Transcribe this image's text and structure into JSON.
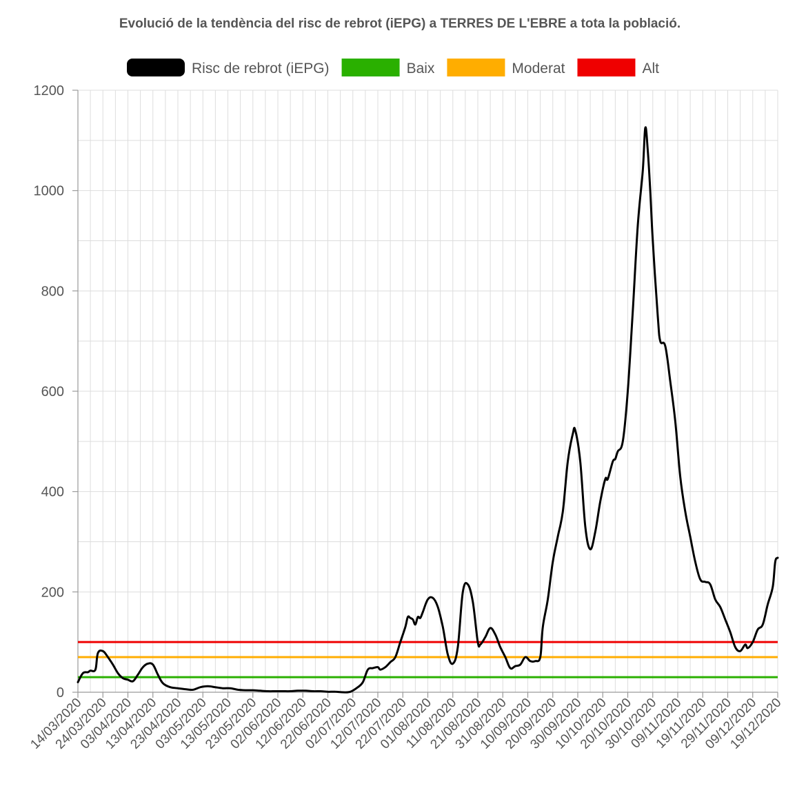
{
  "chart_data": {
    "type": "line",
    "title": "Evolució de la tendència del risc de rebrot (iEPG) a TERRES DE L'EBRE a tota la població.",
    "xlabel": "",
    "ylabel": "",
    "ylim": [
      0,
      1200
    ],
    "yticks": [
      0,
      200,
      400,
      600,
      800,
      1000,
      1200
    ],
    "grid": true,
    "legend_position": "top",
    "x_tick_labels": [
      "14/03/2020",
      "24/03/2020",
      "03/04/2020",
      "13/04/2020",
      "23/04/2020",
      "03/05/2020",
      "13/05/2020",
      "23/05/2020",
      "02/06/2020",
      "12/06/2020",
      "22/06/2020",
      "02/07/2020",
      "12/07/2020",
      "22/07/2020",
      "01/08/2020",
      "11/08/2020",
      "21/08/2020",
      "31/08/2020",
      "10/09/2020",
      "20/09/2020",
      "30/09/2020",
      "10/10/2020",
      "20/10/2020",
      "30/10/2020",
      "09/11/2020",
      "19/11/2020",
      "29/11/2020",
      "09/12/2020",
      "19/12/2020"
    ],
    "series": [
      {
        "name": "Risc de rebrot (iEPG)",
        "color": "#000000",
        "points": [
          [
            "14/03/2020",
            20
          ],
          [
            "16/03/2020",
            38
          ],
          [
            "18/03/2020",
            40
          ],
          [
            "19/03/2020",
            43
          ],
          [
            "21/03/2020",
            45
          ],
          [
            "22/03/2020",
            78
          ],
          [
            "24/03/2020",
            82
          ],
          [
            "26/03/2020",
            70
          ],
          [
            "28/03/2020",
            55
          ],
          [
            "30/03/2020",
            38
          ],
          [
            "01/04/2020",
            28
          ],
          [
            "03/04/2020",
            25
          ],
          [
            "05/04/2020",
            22
          ],
          [
            "07/04/2020",
            35
          ],
          [
            "09/04/2020",
            50
          ],
          [
            "11/04/2020",
            57
          ],
          [
            "13/04/2020",
            55
          ],
          [
            "15/04/2020",
            35
          ],
          [
            "17/04/2020",
            18
          ],
          [
            "20/04/2020",
            10
          ],
          [
            "23/04/2020",
            8
          ],
          [
            "26/04/2020",
            6
          ],
          [
            "29/04/2020",
            5
          ],
          [
            "02/05/2020",
            10
          ],
          [
            "05/05/2020",
            12
          ],
          [
            "08/05/2020",
            10
          ],
          [
            "11/05/2020",
            8
          ],
          [
            "14/05/2020",
            8
          ],
          [
            "17/05/2020",
            5
          ],
          [
            "20/05/2020",
            4
          ],
          [
            "23/05/2020",
            4
          ],
          [
            "26/05/2020",
            3
          ],
          [
            "29/05/2020",
            2
          ],
          [
            "01/06/2020",
            2
          ],
          [
            "04/06/2020",
            2
          ],
          [
            "07/06/2020",
            2
          ],
          [
            "10/06/2020",
            3
          ],
          [
            "13/06/2020",
            3
          ],
          [
            "16/06/2020",
            2
          ],
          [
            "19/06/2020",
            2
          ],
          [
            "22/06/2020",
            1
          ],
          [
            "25/06/2020",
            1
          ],
          [
            "28/06/2020",
            0
          ],
          [
            "01/07/2020",
            1
          ],
          [
            "04/07/2020",
            10
          ],
          [
            "06/07/2020",
            20
          ],
          [
            "08/07/2020",
            45
          ],
          [
            "10/07/2020",
            48
          ],
          [
            "12/07/2020",
            50
          ],
          [
            "13/07/2020",
            45
          ],
          [
            "15/07/2020",
            50
          ],
          [
            "17/07/2020",
            60
          ],
          [
            "19/07/2020",
            70
          ],
          [
            "21/07/2020",
            100
          ],
          [
            "23/07/2020",
            130
          ],
          [
            "24/07/2020",
            150
          ],
          [
            "25/07/2020",
            148
          ],
          [
            "26/07/2020",
            145
          ],
          [
            "27/07/2020",
            135
          ],
          [
            "28/07/2020",
            150
          ],
          [
            "29/07/2020",
            148
          ],
          [
            "30/07/2020",
            160
          ],
          [
            "01/08/2020",
            185
          ],
          [
            "03/08/2020",
            188
          ],
          [
            "05/08/2020",
            170
          ],
          [
            "07/08/2020",
            130
          ],
          [
            "09/08/2020",
            75
          ],
          [
            "11/08/2020",
            57
          ],
          [
            "13/08/2020",
            90
          ],
          [
            "15/08/2020",
            200
          ],
          [
            "17/08/2020",
            215
          ],
          [
            "19/08/2020",
            180
          ],
          [
            "21/08/2020",
            100
          ],
          [
            "22/08/2020",
            95
          ],
          [
            "24/08/2020",
            110
          ],
          [
            "26/08/2020",
            128
          ],
          [
            "28/08/2020",
            115
          ],
          [
            "30/08/2020",
            90
          ],
          [
            "01/09/2020",
            70
          ],
          [
            "03/09/2020",
            48
          ],
          [
            "05/09/2020",
            52
          ],
          [
            "07/09/2020",
            55
          ],
          [
            "09/09/2020",
            70
          ],
          [
            "11/09/2020",
            62
          ],
          [
            "13/09/2020",
            62
          ],
          [
            "15/09/2020",
            70
          ],
          [
            "16/09/2020",
            130
          ],
          [
            "18/09/2020",
            185
          ],
          [
            "20/09/2020",
            260
          ],
          [
            "22/09/2020",
            310
          ],
          [
            "24/09/2020",
            360
          ],
          [
            "26/09/2020",
            460
          ],
          [
            "28/09/2020",
            515
          ],
          [
            "29/09/2020",
            522
          ],
          [
            "01/10/2020",
            460
          ],
          [
            "03/10/2020",
            330
          ],
          [
            "05/10/2020",
            285
          ],
          [
            "07/10/2020",
            320
          ],
          [
            "09/10/2020",
            380
          ],
          [
            "11/10/2020",
            425
          ],
          [
            "12/10/2020",
            425
          ],
          [
            "14/10/2020",
            460
          ],
          [
            "15/10/2020",
            465
          ],
          [
            "16/10/2020",
            480
          ],
          [
            "18/10/2020",
            500
          ],
          [
            "20/10/2020",
            600
          ],
          [
            "22/10/2020",
            760
          ],
          [
            "24/10/2020",
            930
          ],
          [
            "26/10/2020",
            1040
          ],
          [
            "27/10/2020",
            1125
          ],
          [
            "28/10/2020",
            1080
          ],
          [
            "29/10/2020",
            1000
          ],
          [
            "30/10/2020",
            900
          ],
          [
            "01/11/2020",
            750
          ],
          [
            "02/11/2020",
            700
          ],
          [
            "04/11/2020",
            690
          ],
          [
            "06/11/2020",
            620
          ],
          [
            "08/11/2020",
            540
          ],
          [
            "10/11/2020",
            430
          ],
          [
            "12/11/2020",
            360
          ],
          [
            "14/11/2020",
            310
          ],
          [
            "16/11/2020",
            260
          ],
          [
            "18/11/2020",
            225
          ],
          [
            "20/11/2020",
            220
          ],
          [
            "22/11/2020",
            215
          ],
          [
            "24/11/2020",
            185
          ],
          [
            "26/11/2020",
            170
          ],
          [
            "28/11/2020",
            145
          ],
          [
            "30/11/2020",
            120
          ],
          [
            "02/12/2020",
            90
          ],
          [
            "04/12/2020",
            82
          ],
          [
            "06/12/2020",
            95
          ],
          [
            "07/12/2020",
            88
          ],
          [
            "09/12/2020",
            100
          ],
          [
            "11/12/2020",
            125
          ],
          [
            "13/12/2020",
            135
          ],
          [
            "15/12/2020",
            175
          ],
          [
            "17/12/2020",
            210
          ],
          [
            "18/12/2020",
            260
          ],
          [
            "19/12/2020",
            268
          ]
        ]
      },
      {
        "name": "Baix",
        "color": "#2ab000",
        "constant": 30
      },
      {
        "name": "Moderat",
        "color": "#ffad00",
        "constant": 70
      },
      {
        "name": "Alt",
        "color": "#ef0000",
        "constant": 100
      }
    ]
  }
}
